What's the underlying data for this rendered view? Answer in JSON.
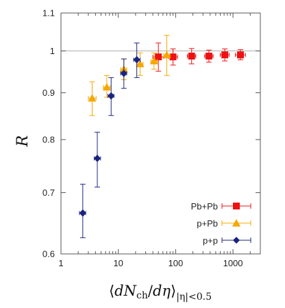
{
  "chart_data": {
    "type": "scatter",
    "ylabel": "R",
    "xlabel": {
      "open": "⟨",
      "d1": "d",
      "N": "N",
      "ch": "ch",
      "slash": "/",
      "d2": "d",
      "eta": "η",
      "close": "⟩",
      "subscript": "|η|<0.5"
    },
    "x_scale": "log",
    "y_scale": "log",
    "xlim": [
      1,
      3000
    ],
    "ylim": [
      0.6,
      1.1
    ],
    "x_ticks": [
      {
        "value": 1,
        "label": "1"
      },
      {
        "value": 10,
        "label": "10"
      },
      {
        "value": 100,
        "label": "100"
      },
      {
        "value": 1000,
        "label": "1000"
      }
    ],
    "y_ticks": [
      {
        "value": 0.6,
        "label": "0.6"
      },
      {
        "value": 0.7,
        "label": "0.7"
      },
      {
        "value": 0.8,
        "label": "0.8"
      },
      {
        "value": 0.9,
        "label": "0.9"
      },
      {
        "value": 1.0,
        "label": "1"
      },
      {
        "value": 1.1,
        "label": "1.1"
      }
    ],
    "reference_line": 1.0,
    "legend_position": "bottom-right",
    "series": [
      {
        "name": "Pb+Pb",
        "marker": "square",
        "color": "#ee1111",
        "points": [
          {
            "x": 50,
            "y": 0.985,
            "ylo": 0.95,
            "yhi": 1.02,
            "xlo": 40,
            "xhi": 62
          },
          {
            "x": 90,
            "y": 0.985,
            "ylo": 0.965,
            "yhi": 1.005,
            "xlo": 75,
            "xhi": 108
          },
          {
            "x": 190,
            "y": 0.987,
            "ylo": 0.968,
            "yhi": 1.006,
            "xlo": 160,
            "xhi": 225
          },
          {
            "x": 380,
            "y": 0.987,
            "ylo": 0.972,
            "yhi": 1.002,
            "xlo": 320,
            "xhi": 450
          },
          {
            "x": 720,
            "y": 0.99,
            "ylo": 0.975,
            "yhi": 1.005,
            "xlo": 600,
            "xhi": 860
          },
          {
            "x": 1350,
            "y": 0.99,
            "ylo": 0.978,
            "yhi": 1.003,
            "xlo": 1100,
            "xhi": 1650
          }
        ]
      },
      {
        "name": "p+Pb",
        "marker": "triangle",
        "color": "#f5a800",
        "points": [
          {
            "x": 3.5,
            "y": 0.888,
            "ylo": 0.85,
            "yhi": 0.925,
            "xlo": 3.0,
            "xhi": 4.1
          },
          {
            "x": 6.3,
            "y": 0.913,
            "ylo": 0.89,
            "yhi": 0.94,
            "xlo": 5.5,
            "xhi": 7.2
          },
          {
            "x": 12.5,
            "y": 0.955,
            "ylo": 0.93,
            "yhi": 0.98,
            "xlo": 11,
            "xhi": 14
          },
          {
            "x": 24,
            "y": 0.968,
            "ylo": 0.94,
            "yhi": 0.995,
            "xlo": 21,
            "xhi": 27
          },
          {
            "x": 42,
            "y": 0.975,
            "ylo": 0.955,
            "yhi": 0.995,
            "xlo": 37,
            "xhi": 48
          },
          {
            "x": 70,
            "y": 0.99,
            "ylo": 0.94,
            "yhi": 1.04,
            "xlo": 62,
            "xhi": 80
          }
        ]
      },
      {
        "name": "p+p",
        "marker": "diamond",
        "color": "#1a237e",
        "points": [
          {
            "x": 2.4,
            "y": 0.665,
            "ylo": 0.625,
            "yhi": 0.715,
            "xlo": 2.1,
            "xhi": 2.7
          },
          {
            "x": 4.3,
            "y": 0.763,
            "ylo": 0.71,
            "yhi": 0.815,
            "xlo": 3.8,
            "xhi": 4.9
          },
          {
            "x": 7.5,
            "y": 0.893,
            "ylo": 0.85,
            "yhi": 0.935,
            "xlo": 6.6,
            "xhi": 8.4
          },
          {
            "x": 12.5,
            "y": 0.945,
            "ylo": 0.91,
            "yhi": 0.98,
            "xlo": 11,
            "xhi": 14
          },
          {
            "x": 21,
            "y": 0.978,
            "ylo": 0.935,
            "yhi": 1.02,
            "xlo": 18.5,
            "xhi": 24
          }
        ]
      }
    ]
  }
}
